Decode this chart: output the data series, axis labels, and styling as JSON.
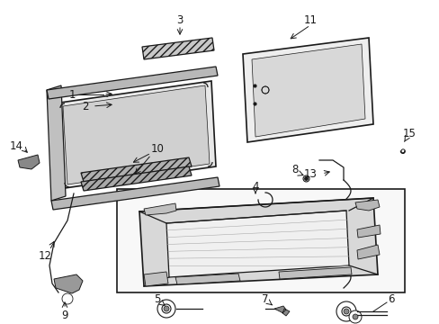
{
  "bg_color": "#ffffff",
  "line_color": "#1a1a1a",
  "gray_light": "#e0e0e0",
  "gray_med": "#b0b0b0",
  "gray_dark": "#888888",
  "figsize": [
    4.89,
    3.6
  ],
  "dpi": 100
}
